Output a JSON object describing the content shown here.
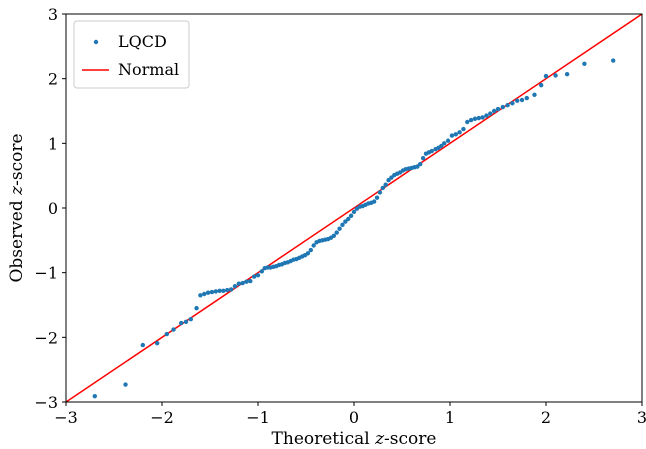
{
  "chart_data": {
    "type": "scatter",
    "title": "",
    "xlabel": "Theoretical z-score",
    "ylabel": "Observed z-score",
    "xlim": [
      -3,
      3
    ],
    "ylim": [
      -3,
      3
    ],
    "x_ticks": [
      -3,
      -2,
      -1,
      0,
      1,
      2,
      3
    ],
    "y_ticks": [
      -3,
      -2,
      -1,
      0,
      1,
      2,
      3
    ],
    "x_tick_labels": [
      "−3",
      "−2",
      "−1",
      "0",
      "1",
      "2",
      "3"
    ],
    "y_tick_labels": [
      "−3",
      "−2",
      "−1",
      "0",
      "1",
      "2",
      "3"
    ],
    "grid": false,
    "legend_position": "top-left",
    "series": [
      {
        "name": "LQCD",
        "kind": "points",
        "color": "#1f77b4",
        "points": [
          [
            -2.7,
            -2.91
          ],
          [
            -2.38,
            -2.73
          ],
          [
            -2.2,
            -2.12
          ],
          [
            -2.05,
            -2.09
          ],
          [
            -1.95,
            -1.95
          ],
          [
            -1.88,
            -1.88
          ],
          [
            -1.8,
            -1.78
          ],
          [
            -1.75,
            -1.76
          ],
          [
            -1.7,
            -1.72
          ],
          [
            -1.64,
            -1.55
          ],
          [
            -1.6,
            -1.35
          ],
          [
            -1.56,
            -1.33
          ],
          [
            -1.52,
            -1.31
          ],
          [
            -1.48,
            -1.3
          ],
          [
            -1.44,
            -1.29
          ],
          [
            -1.4,
            -1.28
          ],
          [
            -1.36,
            -1.28
          ],
          [
            -1.32,
            -1.27
          ],
          [
            -1.28,
            -1.26
          ],
          [
            -1.24,
            -1.21
          ],
          [
            -1.2,
            -1.17
          ],
          [
            -1.16,
            -1.16
          ],
          [
            -1.12,
            -1.14
          ],
          [
            -1.08,
            -1.13
          ],
          [
            -1.04,
            -1.06
          ],
          [
            -1.0,
            -1.04
          ],
          [
            -0.96,
            -0.98
          ],
          [
            -0.93,
            -0.93
          ],
          [
            -0.9,
            -0.92
          ],
          [
            -0.87,
            -0.92
          ],
          [
            -0.84,
            -0.91
          ],
          [
            -0.81,
            -0.9
          ],
          [
            -0.78,
            -0.88
          ],
          [
            -0.75,
            -0.87
          ],
          [
            -0.72,
            -0.85
          ],
          [
            -0.69,
            -0.84
          ],
          [
            -0.66,
            -0.82
          ],
          [
            -0.63,
            -0.8
          ],
          [
            -0.6,
            -0.79
          ],
          [
            -0.57,
            -0.77
          ],
          [
            -0.54,
            -0.75
          ],
          [
            -0.51,
            -0.73
          ],
          [
            -0.48,
            -0.7
          ],
          [
            -0.45,
            -0.65
          ],
          [
            -0.42,
            -0.58
          ],
          [
            -0.39,
            -0.53
          ],
          [
            -0.36,
            -0.51
          ],
          [
            -0.33,
            -0.5
          ],
          [
            -0.3,
            -0.49
          ],
          [
            -0.27,
            -0.48
          ],
          [
            -0.24,
            -0.46
          ],
          [
            -0.21,
            -0.43
          ],
          [
            -0.18,
            -0.38
          ],
          [
            -0.15,
            -0.32
          ],
          [
            -0.12,
            -0.26
          ],
          [
            -0.09,
            -0.21
          ],
          [
            -0.06,
            -0.17
          ],
          [
            -0.03,
            -0.12
          ],
          [
            0.0,
            -0.06
          ],
          [
            0.03,
            -0.01
          ],
          [
            0.06,
            0.02
          ],
          [
            0.09,
            0.03
          ],
          [
            0.12,
            0.05
          ],
          [
            0.15,
            0.07
          ],
          [
            0.18,
            0.08
          ],
          [
            0.21,
            0.1
          ],
          [
            0.24,
            0.16
          ],
          [
            0.27,
            0.24
          ],
          [
            0.3,
            0.31
          ],
          [
            0.33,
            0.36
          ],
          [
            0.36,
            0.43
          ],
          [
            0.39,
            0.47
          ],
          [
            0.42,
            0.51
          ],
          [
            0.45,
            0.53
          ],
          [
            0.48,
            0.55
          ],
          [
            0.51,
            0.58
          ],
          [
            0.54,
            0.6
          ],
          [
            0.57,
            0.61
          ],
          [
            0.6,
            0.62
          ],
          [
            0.63,
            0.63
          ],
          [
            0.66,
            0.64
          ],
          [
            0.69,
            0.68
          ],
          [
            0.72,
            0.77
          ],
          [
            0.75,
            0.84
          ],
          [
            0.78,
            0.86
          ],
          [
            0.81,
            0.88
          ],
          [
            0.85,
            0.91
          ],
          [
            0.88,
            0.93
          ],
          [
            0.91,
            0.96
          ],
          [
            0.94,
            1.0
          ],
          [
            0.98,
            1.04
          ],
          [
            1.02,
            1.12
          ],
          [
            1.06,
            1.14
          ],
          [
            1.1,
            1.17
          ],
          [
            1.14,
            1.22
          ],
          [
            1.18,
            1.33
          ],
          [
            1.22,
            1.36
          ],
          [
            1.26,
            1.38
          ],
          [
            1.3,
            1.39
          ],
          [
            1.34,
            1.4
          ],
          [
            1.38,
            1.43
          ],
          [
            1.42,
            1.46
          ],
          [
            1.46,
            1.5
          ],
          [
            1.5,
            1.53
          ],
          [
            1.55,
            1.56
          ],
          [
            1.6,
            1.59
          ],
          [
            1.65,
            1.62
          ],
          [
            1.7,
            1.66
          ],
          [
            1.75,
            1.67
          ],
          [
            1.8,
            1.7
          ],
          [
            1.88,
            1.75
          ],
          [
            1.95,
            1.9
          ],
          [
            2.0,
            2.04
          ],
          [
            2.1,
            2.05
          ],
          [
            2.22,
            2.07
          ],
          [
            2.4,
            2.23
          ],
          [
            2.7,
            2.28
          ]
        ]
      },
      {
        "name": "Normal",
        "kind": "line",
        "color": "#ff0000",
        "x": [
          -3,
          3
        ],
        "y": [
          -3,
          3
        ]
      }
    ]
  }
}
